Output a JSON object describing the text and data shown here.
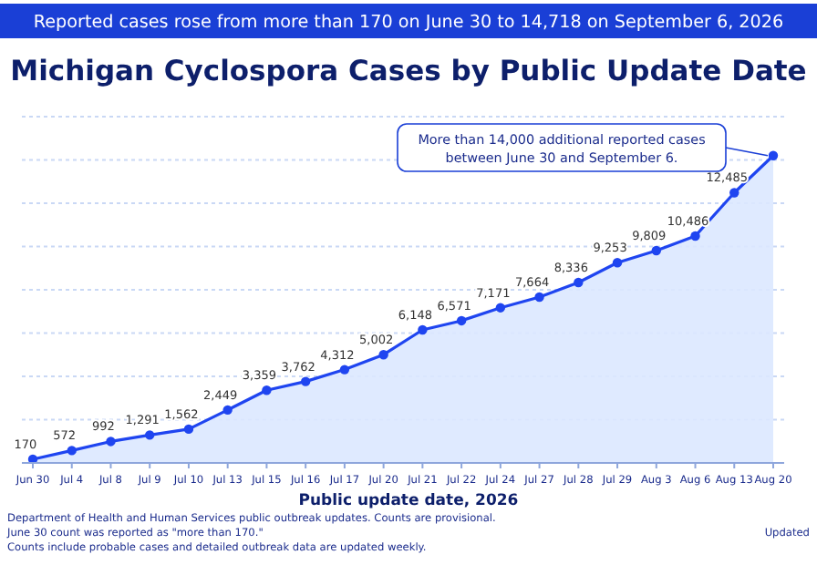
{
  "chart_data": {
    "type": "area",
    "title": "Michigan Cyclospora Cases by Public Update Date",
    "subtitle": "Reported cases rose from more than 170 on June 30 to 14,718 on September 6, 2026",
    "xlabel": "Public update date, 2026",
    "categories": [
      "Jun 30",
      "Jul 4",
      "Jul 8",
      "Jul 9",
      "Jul 10",
      "Jul 13",
      "Jul 15",
      "Jul 16",
      "Jul 17",
      "Jul 20",
      "Jul 21",
      "Jul 22",
      "Jul 24",
      "Jul 27",
      "Jul 28",
      "Jul 29",
      "Aug 3",
      "Aug 6",
      "Aug 13",
      "Aug 20"
    ],
    "series": [
      {
        "color": "#1f45f0",
        "values": [
          170,
          572,
          992,
          1291,
          1562,
          2449,
          3359,
          3762,
          4312,
          5002,
          6148,
          6571,
          7171,
          7664,
          8336,
          9253,
          9809,
          10486,
          12485,
          14200
        ],
        "value_labels": [
          "170",
          "572",
          "992",
          "1,291",
          "1,562",
          "2,449",
          "3,359",
          "3,762",
          "4,312",
          "5,002",
          "6,148",
          "6,571",
          "7,171",
          "7,664",
          "8,336",
          "9,253",
          "9,809",
          "10,486",
          "12,485",
          null
        ]
      }
    ],
    "ylim": [
      0,
      16000
    ],
    "yticks": [
      {
        "value": 2000,
        "label": null
      },
      {
        "value": 4000,
        "label": null
      },
      {
        "value": 6000,
        "label": null
      },
      {
        "value": 8000,
        "label": null
      },
      {
        "value": 10000,
        "label": null
      },
      {
        "value": 12000,
        "label": null
      },
      {
        "value": 14000,
        "label": null
      },
      {
        "value": 16000,
        "label": null
      }
    ],
    "grid": "y",
    "marker": "circle",
    "line_style": "solid",
    "tick_labels": "x",
    "annotations": [
      "More than 14,000 additional reported cases between June 30 and September 6.",
      "Department of Health and Human Services public outbreak updates. Counts are provisional.",
      "June 30 count was reported as \"more than 170.\"",
      "Counts include probable cases and detailed outbreak data are updated weekly.",
      "Updated"
    ]
  }
}
